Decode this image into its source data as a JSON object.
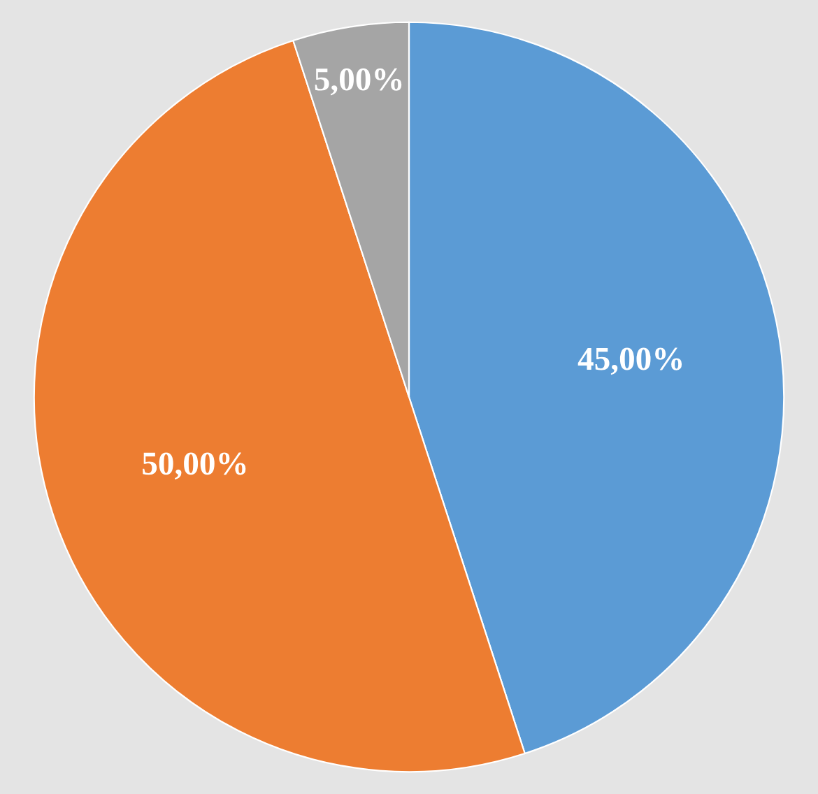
{
  "chart_data": {
    "type": "pie",
    "categories": [
      null,
      null,
      null
    ],
    "values": [
      45,
      50,
      5
    ],
    "colors": [
      "#5b9bd5",
      "#ed7d31",
      "#a5a5a5"
    ],
    "value_labels": [
      "45,00%",
      "50,00%",
      "5,00%"
    ]
  }
}
